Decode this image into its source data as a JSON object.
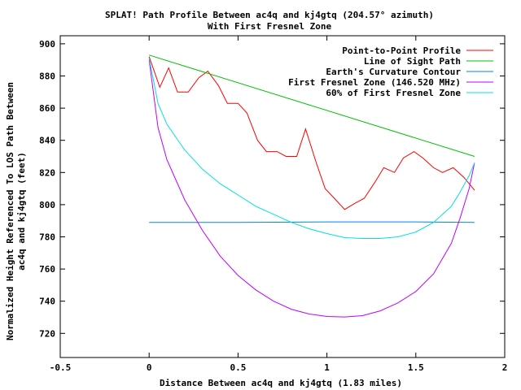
{
  "chart_data": {
    "type": "line",
    "title": "SPLAT! Path Profile Between ac4q and kj4gtq (204.57° azimuth)",
    "subtitle": "With First Fresnel Zone",
    "xlabel": "Distance Between ac4q and kj4gtq (1.83 miles)",
    "ylabel_line1": "Normalized Height Referenced To LOS Path Between",
    "ylabel_line2": "ac4q and kj4gtq (feet)",
    "xlim": [
      -0.5,
      2
    ],
    "ylim": [
      705,
      905
    ],
    "x_ticks": [
      -0.5,
      0,
      0.5,
      1,
      1.5,
      2
    ],
    "x_tick_labels": [
      "-0.5",
      "0",
      "0.5",
      "1",
      "1.5",
      "2"
    ],
    "y_ticks": [
      720,
      740,
      760,
      780,
      800,
      820,
      840,
      860,
      880,
      900
    ],
    "y_tick_labels": [
      "720",
      "740",
      "760",
      "780",
      "800",
      "820",
      "840",
      "860",
      "880",
      "900"
    ],
    "grid": false,
    "legend_position": "top-right",
    "series": [
      {
        "name": "Point-to-Point Profile",
        "color": "#ff0000",
        "x": [
          0,
          0.06,
          0.11,
          0.16,
          0.22,
          0.28,
          0.33,
          0.39,
          0.44,
          0.5,
          0.55,
          0.61,
          0.66,
          0.72,
          0.77,
          0.83,
          0.88,
          0.94,
          0.99,
          1.05,
          1.1,
          1.16,
          1.21,
          1.27,
          1.32,
          1.38,
          1.43,
          1.49,
          1.54,
          1.6,
          1.65,
          1.71,
          1.77,
          1.83
        ],
        "y": [
          892,
          873,
          885,
          870,
          870,
          879,
          883,
          874,
          863,
          863,
          857,
          840,
          833,
          833,
          830,
          830,
          847,
          826,
          810,
          803,
          797,
          801,
          804,
          814,
          823,
          820,
          829,
          833,
          829,
          823,
          820,
          823,
          817,
          809
        ]
      },
      {
        "name": "Line of Sight Path",
        "color": "#00c000",
        "x": [
          0,
          1.83
        ],
        "y": [
          893,
          830
        ]
      },
      {
        "name": "Earth's Curvature Contour",
        "color": "#0080ff",
        "x": [
          0,
          0.5,
          1.0,
          1.5,
          1.83
        ],
        "y": [
          789,
          789,
          789.3,
          789.3,
          789
        ]
      },
      {
        "name": "First Fresnel Zone (146.520 MHz)",
        "color": "#c000ff",
        "x": [
          0,
          0.05,
          0.1,
          0.2,
          0.3,
          0.4,
          0.5,
          0.6,
          0.7,
          0.8,
          0.9,
          1.0,
          1.1,
          1.2,
          1.3,
          1.4,
          1.5,
          1.6,
          1.7,
          1.75,
          1.8,
          1.83
        ],
        "y": [
          890,
          848,
          828,
          803,
          784,
          768,
          756,
          747,
          740,
          735,
          732,
          730.5,
          730.2,
          731,
          734,
          739,
          746,
          757,
          776,
          792,
          810,
          826
        ]
      },
      {
        "name": "60% of First Fresnel Zone",
        "color": "#00e0e0",
        "x": [
          0,
          0.05,
          0.1,
          0.2,
          0.3,
          0.4,
          0.5,
          0.6,
          0.7,
          0.8,
          0.9,
          1.0,
          1.1,
          1.2,
          1.3,
          1.4,
          1.5,
          1.6,
          1.7,
          1.75,
          1.8,
          1.83
        ],
        "y": [
          891,
          863,
          850,
          834,
          822,
          813,
          806,
          799,
          794,
          789,
          785,
          782,
          779.5,
          779,
          779,
          780,
          783,
          789,
          799,
          808,
          818,
          826
        ]
      }
    ]
  }
}
